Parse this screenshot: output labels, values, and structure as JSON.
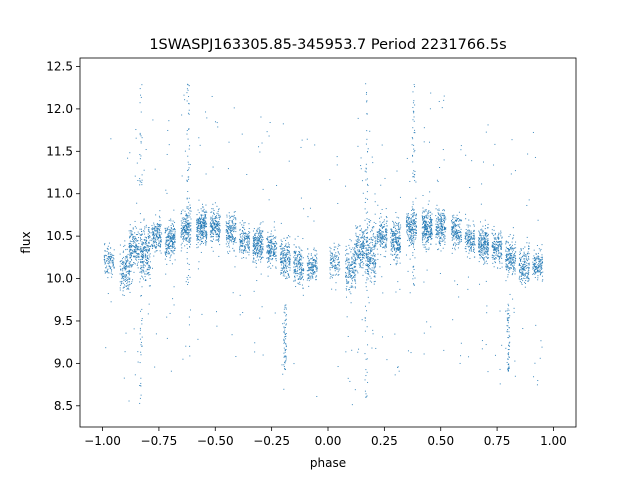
{
  "chart_data": {
    "type": "scatter",
    "title": "1SWASPJ163305.85-345953.7 Period 2231766.5s",
    "xlabel": "phase",
    "ylabel": "flux",
    "xlim": [
      -1.1,
      1.1
    ],
    "ylim": [
      8.25,
      12.6
    ],
    "grid": false,
    "legend": "none",
    "marker_color": "#1f77b4",
    "x_ticks": [
      -1.0,
      -0.75,
      -0.5,
      -0.25,
      0.0,
      0.25,
      0.5,
      0.75,
      1.0
    ],
    "x_tick_labels": [
      "−1.00",
      "−0.75",
      "−0.50",
      "−0.25",
      "0.00",
      "0.25",
      "0.50",
      "0.75",
      "1.00"
    ],
    "y_ticks": [
      8.5,
      9.0,
      9.5,
      10.0,
      10.5,
      11.0,
      11.5,
      12.0,
      12.5
    ],
    "y_tick_labels": [
      "8.5",
      "9.0",
      "9.5",
      "10.0",
      "10.5",
      "11.0",
      "11.5",
      "12.0",
      "12.5"
    ],
    "profile_phase": [
      0.0,
      0.1,
      0.2,
      0.3,
      0.4,
      0.5,
      0.6,
      0.7,
      0.8,
      0.9,
      1.0
    ],
    "profile_flux": [
      10.1,
      10.25,
      10.4,
      10.55,
      10.6,
      10.6,
      10.5,
      10.45,
      10.3,
      10.15,
      10.1
    ],
    "clusters": [
      {
        "phase": -0.97,
        "flux": 10.2,
        "spread": 0.35,
        "n": 110
      },
      {
        "phase": -0.9,
        "flux": 10.1,
        "spread": 0.45,
        "n": 160
      },
      {
        "phase": -0.86,
        "flux": 10.35,
        "spread": 0.45,
        "n": 190
      },
      {
        "phase": -0.81,
        "flux": 10.3,
        "spread": 0.6,
        "n": 230
      },
      {
        "phase": -0.76,
        "flux": 10.5,
        "spread": 0.35,
        "n": 170
      },
      {
        "phase": -0.7,
        "flux": 10.45,
        "spread": 0.4,
        "n": 220
      },
      {
        "phase": -0.63,
        "flux": 10.6,
        "spread": 0.35,
        "n": 200
      },
      {
        "phase": -0.56,
        "flux": 10.6,
        "spread": 0.35,
        "n": 260
      },
      {
        "phase": -0.5,
        "flux": 10.6,
        "spread": 0.35,
        "n": 200
      },
      {
        "phase": -0.43,
        "flux": 10.55,
        "spread": 0.35,
        "n": 170
      },
      {
        "phase": -0.37,
        "flux": 10.45,
        "spread": 0.3,
        "n": 150
      },
      {
        "phase": -0.31,
        "flux": 10.4,
        "spread": 0.35,
        "n": 230
      },
      {
        "phase": -0.25,
        "flux": 10.35,
        "spread": 0.35,
        "n": 170
      },
      {
        "phase": -0.19,
        "flux": 10.25,
        "spread": 0.4,
        "n": 190
      },
      {
        "phase": -0.13,
        "flux": 10.15,
        "spread": 0.4,
        "n": 170
      },
      {
        "phase": -0.07,
        "flux": 10.15,
        "spread": 0.3,
        "n": 150
      },
      {
        "phase": 0.03,
        "flux": 10.2,
        "spread": 0.35,
        "n": 110
      },
      {
        "phase": 0.1,
        "flux": 10.1,
        "spread": 0.45,
        "n": 160
      },
      {
        "phase": 0.14,
        "flux": 10.35,
        "spread": 0.45,
        "n": 190
      },
      {
        "phase": 0.19,
        "flux": 10.3,
        "spread": 0.6,
        "n": 230
      },
      {
        "phase": 0.24,
        "flux": 10.5,
        "spread": 0.35,
        "n": 170
      },
      {
        "phase": 0.3,
        "flux": 10.45,
        "spread": 0.4,
        "n": 220
      },
      {
        "phase": 0.37,
        "flux": 10.6,
        "spread": 0.35,
        "n": 200
      },
      {
        "phase": 0.44,
        "flux": 10.6,
        "spread": 0.35,
        "n": 260
      },
      {
        "phase": 0.5,
        "flux": 10.6,
        "spread": 0.35,
        "n": 200
      },
      {
        "phase": 0.57,
        "flux": 10.55,
        "spread": 0.35,
        "n": 170
      },
      {
        "phase": 0.63,
        "flux": 10.45,
        "spread": 0.3,
        "n": 150
      },
      {
        "phase": 0.69,
        "flux": 10.4,
        "spread": 0.35,
        "n": 230
      },
      {
        "phase": 0.75,
        "flux": 10.35,
        "spread": 0.35,
        "n": 170
      },
      {
        "phase": 0.81,
        "flux": 10.25,
        "spread": 0.4,
        "n": 190
      },
      {
        "phase": 0.87,
        "flux": 10.15,
        "spread": 0.4,
        "n": 170
      },
      {
        "phase": 0.93,
        "flux": 10.15,
        "spread": 0.3,
        "n": 150
      }
    ],
    "outlier_streaks": [
      {
        "phase": -0.83,
        "flux_low": 8.5,
        "flux_high": 12.3
      },
      {
        "phase": -0.62,
        "flux_low": 9.9,
        "flux_high": 12.3
      },
      {
        "phase": -0.19,
        "flux_low": 8.9,
        "flux_high": 9.7
      },
      {
        "phase": 0.17,
        "flux_low": 8.5,
        "flux_high": 12.3
      },
      {
        "phase": 0.38,
        "flux_low": 9.9,
        "flux_high": 12.3
      },
      {
        "phase": 0.8,
        "flux_low": 8.9,
        "flux_high": 9.7
      }
    ]
  }
}
